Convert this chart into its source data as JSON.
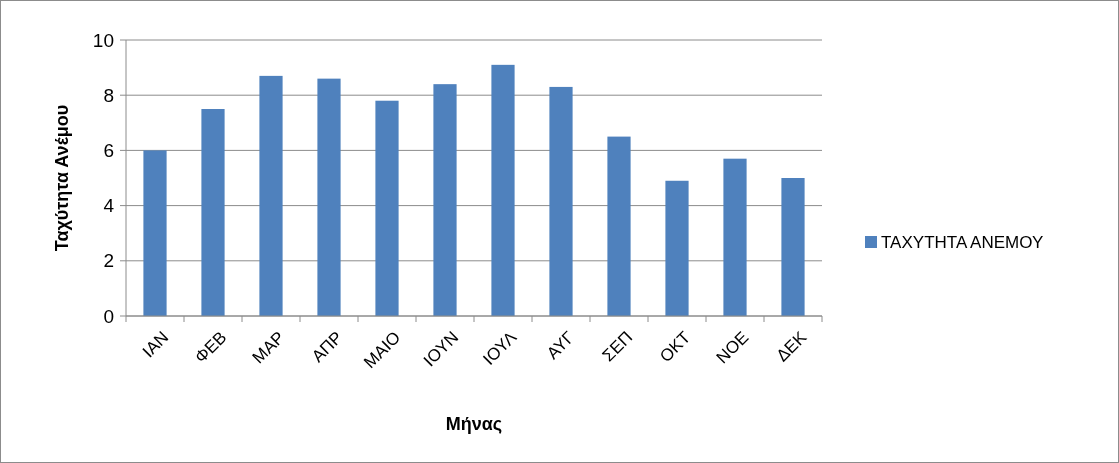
{
  "chart_data": {
    "type": "bar",
    "xlabel": "Μήνας",
    "ylabel": "Ταχύτητα Ανέμου",
    "categories": [
      "ΙΑΝ",
      "ΦΕΒ",
      "ΜΑΡ",
      "ΑΠΡ",
      "ΜΑΙΟ",
      "ΙΟΥΝ",
      "ΙΟΥΛ",
      "ΑΥΓ",
      "ΣΕΠ",
      "ΟΚΤ",
      "ΝΟΕ",
      "ΔΕΚ"
    ],
    "series": [
      {
        "name": "ΤΑΧΥΤΗΤΑ ΑΝΕΜΟΥ",
        "color": "#4f81bd",
        "values": [
          6.0,
          7.5,
          8.7,
          8.6,
          7.8,
          8.4,
          9.1,
          8.3,
          6.5,
          4.9,
          5.7,
          5.0
        ]
      }
    ],
    "ylim": [
      0,
      10
    ],
    "yticks": [
      0,
      2,
      4,
      6,
      8,
      10
    ],
    "grid": "y",
    "legend": "right"
  }
}
